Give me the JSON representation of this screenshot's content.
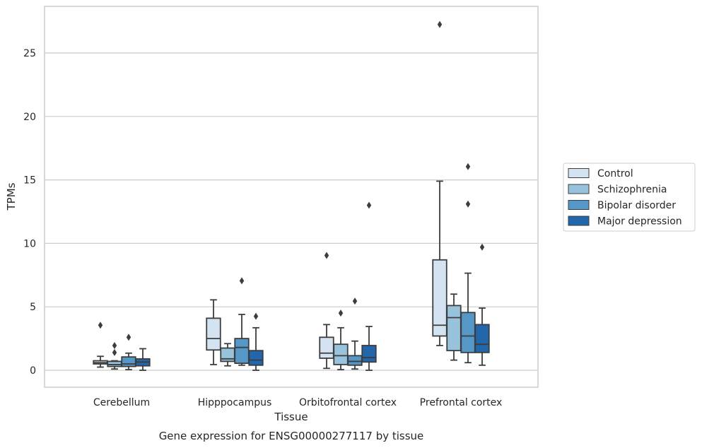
{
  "chart_data": {
    "type": "boxplot",
    "caption": "Gene expression for ENSG00000277117 by tissue",
    "xlabel": "Tissue",
    "ylabel": "TPMs",
    "ylim": [
      -1.3,
      28.5
    ],
    "yticks": [
      0,
      5,
      10,
      15,
      20,
      25
    ],
    "grid": "horizontal",
    "legend_position": "right",
    "categories": [
      "Cerebellum",
      "Hipppocampus",
      "Orbitofrontal cortex",
      "Prefrontal cortex"
    ],
    "series": [
      {
        "name": "Control",
        "color": "#d4e3f1",
        "boxes": [
          {
            "whislo": 0.25,
            "q1": 0.5,
            "med": 0.6,
            "q3": 0.75,
            "whishi": 1.1,
            "fliers": [
              3.55
            ]
          },
          {
            "whislo": 0.45,
            "q1": 1.6,
            "med": 2.5,
            "q3": 4.1,
            "whishi": 5.55,
            "fliers": []
          },
          {
            "whislo": 0.15,
            "q1": 0.95,
            "med": 1.35,
            "q3": 2.6,
            "whishi": 3.6,
            "fliers": [
              9.05
            ]
          },
          {
            "whislo": 1.95,
            "q1": 2.7,
            "med": 3.55,
            "q3": 8.7,
            "whishi": 14.9,
            "fliers": [
              27.25
            ]
          }
        ]
      },
      {
        "name": "Schizophrenia",
        "color": "#99c2dd",
        "boxes": [
          {
            "whislo": 0.1,
            "q1": 0.3,
            "med": 0.45,
            "q3": 0.7,
            "whishi": 0.75,
            "fliers": [
              1.4,
              1.95
            ]
          },
          {
            "whislo": 0.35,
            "q1": 0.7,
            "med": 0.9,
            "q3": 1.75,
            "whishi": 2.1,
            "fliers": []
          },
          {
            "whislo": 0.05,
            "q1": 0.45,
            "med": 1.15,
            "q3": 2.05,
            "whishi": 3.35,
            "fliers": [
              4.5
            ]
          },
          {
            "whislo": 0.8,
            "q1": 1.55,
            "med": 4.15,
            "q3": 5.1,
            "whishi": 6.0,
            "fliers": []
          }
        ]
      },
      {
        "name": "Bipolar disorder",
        "color": "#5598c8",
        "boxes": [
          {
            "whislo": 0.05,
            "q1": 0.3,
            "med": 0.5,
            "q3": 1.05,
            "whishi": 1.35,
            "fliers": [
              2.6
            ]
          },
          {
            "whislo": 0.4,
            "q1": 0.55,
            "med": 1.8,
            "q3": 2.5,
            "whishi": 4.4,
            "fliers": [
              7.05
            ]
          },
          {
            "whislo": 0.1,
            "q1": 0.4,
            "med": 0.7,
            "q3": 1.15,
            "whishi": 2.3,
            "fliers": [
              5.45
            ]
          },
          {
            "whislo": 0.6,
            "q1": 1.4,
            "med": 2.7,
            "q3": 4.55,
            "whishi": 7.65,
            "fliers": [
              13.1,
              16.05
            ]
          }
        ]
      },
      {
        "name": "Major depression",
        "color": "#2266ac",
        "boxes": [
          {
            "whislo": 0.0,
            "q1": 0.35,
            "med": 0.65,
            "q3": 0.9,
            "whishi": 1.7,
            "fliers": []
          },
          {
            "whislo": 0.0,
            "q1": 0.4,
            "med": 0.8,
            "q3": 1.55,
            "whishi": 3.35,
            "fliers": [
              4.25
            ]
          },
          {
            "whislo": 0.0,
            "q1": 0.65,
            "med": 1.0,
            "q3": 1.95,
            "whishi": 3.45,
            "fliers": [
              13.0
            ]
          },
          {
            "whislo": 0.4,
            "q1": 1.4,
            "med": 2.05,
            "q3": 3.6,
            "whishi": 4.9,
            "fliers": [
              9.7
            ]
          }
        ]
      }
    ]
  }
}
